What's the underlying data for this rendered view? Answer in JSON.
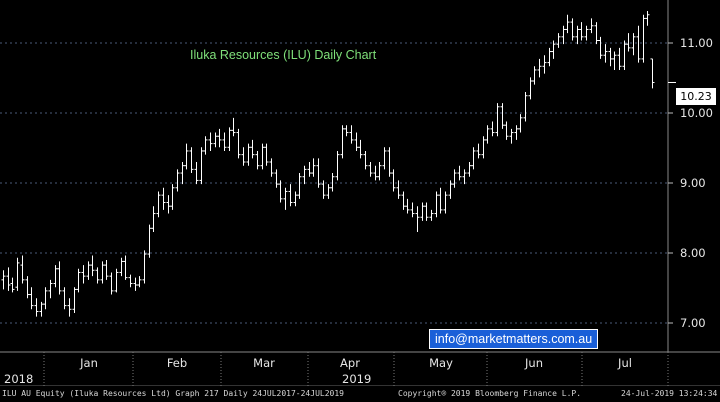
{
  "chart_data": {
    "type": "ohlc",
    "title": "Iluka Resources (ILU) Daily Chart",
    "last_price_label": "10.23",
    "y_axis": {
      "ticks": [
        "7.00",
        "8.00",
        "9.00",
        "10.00",
        "11.00"
      ],
      "ylim": [
        6.57,
        11.35
      ],
      "side": "right"
    },
    "x_axis": {
      "month_labels": [
        "Jan",
        "Feb",
        "Mar",
        "Apr",
        "May",
        "Jun",
        "Jul"
      ],
      "year_labels": [
        "2018",
        "2019"
      ]
    },
    "series": [
      {
        "values": [
          [
            7.55,
            7.68,
            7.42,
            7.6
          ],
          [
            7.6,
            7.72,
            7.4,
            7.48
          ],
          [
            7.5,
            7.58,
            7.38,
            7.42
          ],
          [
            7.45,
            7.85,
            7.4,
            7.78
          ],
          [
            7.75,
            7.88,
            7.5,
            7.55
          ],
          [
            7.55,
            7.6,
            7.3,
            7.35
          ],
          [
            7.35,
            7.45,
            7.15,
            7.2
          ],
          [
            7.2,
            7.3,
            7.05,
            7.12
          ],
          [
            7.12,
            7.25,
            7.05,
            7.22
          ],
          [
            7.22,
            7.45,
            7.15,
            7.4
          ],
          [
            7.4,
            7.55,
            7.3,
            7.5
          ],
          [
            7.5,
            7.75,
            7.45,
            7.7
          ],
          [
            7.7,
            7.8,
            7.35,
            7.4
          ],
          [
            7.4,
            7.45,
            7.15,
            7.2
          ],
          [
            7.2,
            7.3,
            7.05,
            7.15
          ],
          [
            7.15,
            7.45,
            7.1,
            7.42
          ],
          [
            7.42,
            7.7,
            7.38,
            7.65
          ],
          [
            7.65,
            7.75,
            7.5,
            7.6
          ],
          [
            7.6,
            7.8,
            7.55,
            7.75
          ],
          [
            7.75,
            7.88,
            7.6,
            7.68
          ],
          [
            7.68,
            7.72,
            7.5,
            7.55
          ],
          [
            7.55,
            7.8,
            7.5,
            7.75
          ],
          [
            7.75,
            7.82,
            7.55,
            7.6
          ],
          [
            7.6,
            7.65,
            7.35,
            7.4
          ],
          [
            7.4,
            7.7,
            7.38,
            7.65
          ],
          [
            7.65,
            7.85,
            7.6,
            7.8
          ],
          [
            7.8,
            7.88,
            7.55,
            7.58
          ],
          [
            7.58,
            7.62,
            7.45,
            7.5
          ],
          [
            7.5,
            7.58,
            7.4,
            7.48
          ],
          [
            7.48,
            7.6,
            7.45,
            7.55
          ],
          [
            7.55,
            7.95,
            7.5,
            7.9
          ],
          [
            7.9,
            8.3,
            7.85,
            8.25
          ],
          [
            8.25,
            8.55,
            8.2,
            8.45
          ],
          [
            8.45,
            8.75,
            8.4,
            8.7
          ],
          [
            8.7,
            8.8,
            8.5,
            8.6
          ],
          [
            8.6,
            8.7,
            8.45,
            8.55
          ],
          [
            8.55,
            8.85,
            8.5,
            8.8
          ],
          [
            8.8,
            9.05,
            8.75,
            9.0
          ],
          [
            9.0,
            9.15,
            8.85,
            9.1
          ],
          [
            9.1,
            9.4,
            9.05,
            9.3
          ],
          [
            9.3,
            9.35,
            9.0,
            9.05
          ],
          [
            9.05,
            9.15,
            8.85,
            8.9
          ],
          [
            8.9,
            9.35,
            8.85,
            9.3
          ],
          [
            9.3,
            9.5,
            9.25,
            9.45
          ],
          [
            9.45,
            9.55,
            9.3,
            9.4
          ],
          [
            9.4,
            9.55,
            9.35,
            9.5
          ],
          [
            9.5,
            9.6,
            9.35,
            9.45
          ],
          [
            9.45,
            9.55,
            9.3,
            9.35
          ],
          [
            9.35,
            9.62,
            9.3,
            9.58
          ],
          [
            9.58,
            9.75,
            9.5,
            9.55
          ],
          [
            9.55,
            9.6,
            9.2,
            9.25
          ],
          [
            9.25,
            9.35,
            9.1,
            9.15
          ],
          [
            9.15,
            9.4,
            9.1,
            9.35
          ],
          [
            9.35,
            9.45,
            9.2,
            9.25
          ],
          [
            9.25,
            9.3,
            9.05,
            9.1
          ],
          [
            9.1,
            9.4,
            9.05,
            9.35
          ],
          [
            9.35,
            9.4,
            9.1,
            9.15
          ],
          [
            9.15,
            9.2,
            8.95,
            9.0
          ],
          [
            9.0,
            9.05,
            8.8,
            8.85
          ],
          [
            8.85,
            8.9,
            8.6,
            8.65
          ],
          [
            8.65,
            8.8,
            8.5,
            8.75
          ],
          [
            8.75,
            8.85,
            8.55,
            8.6
          ],
          [
            8.6,
            8.75,
            8.55,
            8.7
          ],
          [
            8.7,
            9.0,
            8.65,
            8.95
          ],
          [
            8.95,
            9.1,
            8.85,
            9.05
          ],
          [
            9.05,
            9.15,
            8.95,
            9.0
          ],
          [
            9.0,
            9.2,
            8.95,
            9.1
          ],
          [
            9.1,
            9.2,
            8.8,
            8.85
          ],
          [
            8.85,
            8.9,
            8.65,
            8.7
          ],
          [
            8.7,
            8.85,
            8.65,
            8.8
          ],
          [
            8.8,
            9.0,
            8.75,
            8.95
          ],
          [
            8.95,
            9.3,
            8.9,
            9.25
          ],
          [
            9.25,
            9.65,
            9.2,
            9.6
          ],
          [
            9.6,
            9.65,
            9.5,
            9.55
          ],
          [
            9.55,
            9.65,
            9.4,
            9.45
          ],
          [
            9.45,
            9.55,
            9.3,
            9.35
          ],
          [
            9.35,
            9.45,
            9.2,
            9.25
          ],
          [
            9.25,
            9.3,
            9.05,
            9.1
          ],
          [
            9.1,
            9.15,
            8.95,
            9.0
          ],
          [
            9.0,
            9.1,
            8.9,
            8.95
          ],
          [
            8.95,
            9.15,
            8.9,
            9.1
          ],
          [
            9.1,
            9.35,
            9.05,
            9.3
          ],
          [
            9.3,
            9.35,
            8.95,
            9.0
          ],
          [
            9.0,
            9.05,
            8.75,
            8.8
          ],
          [
            8.8,
            8.9,
            8.65,
            8.7
          ],
          [
            8.7,
            8.75,
            8.5,
            8.55
          ],
          [
            8.55,
            8.65,
            8.45,
            8.5
          ],
          [
            8.5,
            8.6,
            8.4,
            8.45
          ],
          [
            8.45,
            8.55,
            8.2,
            8.4
          ],
          [
            8.4,
            8.6,
            8.35,
            8.55
          ],
          [
            8.55,
            8.6,
            8.35,
            8.4
          ],
          [
            8.4,
            8.5,
            8.35,
            8.45
          ],
          [
            8.45,
            8.75,
            8.4,
            8.7
          ],
          [
            8.7,
            8.8,
            8.45,
            8.5
          ],
          [
            8.5,
            8.75,
            8.45,
            8.7
          ],
          [
            8.7,
            8.9,
            8.65,
            8.85
          ],
          [
            8.85,
            9.05,
            8.8,
            9.0
          ],
          [
            9.0,
            9.1,
            8.9,
            8.95
          ],
          [
            8.95,
            9.05,
            8.85,
            9.0
          ],
          [
            9.0,
            9.15,
            8.95,
            9.1
          ],
          [
            9.1,
            9.35,
            9.05,
            9.3
          ],
          [
            9.3,
            9.4,
            9.2,
            9.25
          ],
          [
            9.25,
            9.5,
            9.2,
            9.45
          ],
          [
            9.45,
            9.65,
            9.4,
            9.6
          ],
          [
            9.6,
            9.7,
            9.5,
            9.55
          ],
          [
            9.55,
            9.95,
            9.5,
            9.9
          ],
          [
            9.9,
            9.95,
            9.6,
            9.65
          ],
          [
            9.65,
            9.7,
            9.45,
            9.5
          ],
          [
            9.5,
            9.6,
            9.4,
            9.55
          ],
          [
            9.55,
            9.65,
            9.45,
            9.6
          ],
          [
            9.6,
            9.8,
            9.55,
            9.75
          ],
          [
            9.75,
            10.1,
            9.7,
            10.05
          ],
          [
            10.05,
            10.3,
            10.0,
            10.25
          ],
          [
            10.25,
            10.45,
            10.2,
            10.4
          ],
          [
            10.4,
            10.55,
            10.3,
            10.45
          ],
          [
            10.45,
            10.6,
            10.35,
            10.5
          ],
          [
            10.5,
            10.7,
            10.45,
            10.65
          ],
          [
            10.65,
            10.8,
            10.55,
            10.75
          ],
          [
            10.75,
            10.9,
            10.7,
            10.85
          ],
          [
            10.85,
            11.0,
            10.75,
            10.95
          ],
          [
            10.95,
            11.15,
            10.9,
            11.05
          ],
          [
            11.05,
            11.1,
            10.8,
            10.85
          ],
          [
            10.85,
            11.0,
            10.75,
            10.95
          ],
          [
            10.95,
            11.05,
            10.8,
            10.85
          ],
          [
            10.85,
            11.0,
            10.8,
            10.95
          ],
          [
            10.95,
            11.1,
            10.9,
            11.0
          ],
          [
            11.0,
            11.05,
            10.75,
            10.8
          ],
          [
            10.8,
            10.85,
            10.55,
            10.6
          ],
          [
            10.6,
            10.75,
            10.5,
            10.65
          ],
          [
            10.65,
            10.7,
            10.45,
            10.55
          ],
          [
            10.55,
            10.65,
            10.4,
            10.6
          ],
          [
            10.6,
            10.7,
            10.4,
            10.45
          ],
          [
            10.45,
            10.8,
            10.4,
            10.75
          ],
          [
            10.75,
            10.9,
            10.65,
            10.7
          ],
          [
            10.7,
            10.9,
            10.6,
            10.85
          ],
          [
            10.85,
            11.0,
            10.5,
            10.55
          ],
          [
            10.55,
            11.15,
            10.5,
            11.1
          ],
          [
            11.1,
            11.2,
            11.0,
            11.15
          ],
          [
            10.55,
            10.55,
            10.15,
            10.23
          ]
        ]
      }
    ],
    "grid": "dotted-horizontal",
    "branding": {
      "website": "info@marketmatters.com.au"
    }
  },
  "footer": {
    "security": "ILU AU Equity (Iluka Resources Ltd) Graph 217  Daily 24JUL2017-24JUL2019",
    "copyright": "Copyright® 2019 Bloomberg Finance L.P.",
    "timestamp": "24-Jul-2019 13:24:34"
  },
  "colors": {
    "background": "#000000",
    "bars": "#ffffff",
    "title": "#7fe07a",
    "grid": "#4a5a78"
  }
}
